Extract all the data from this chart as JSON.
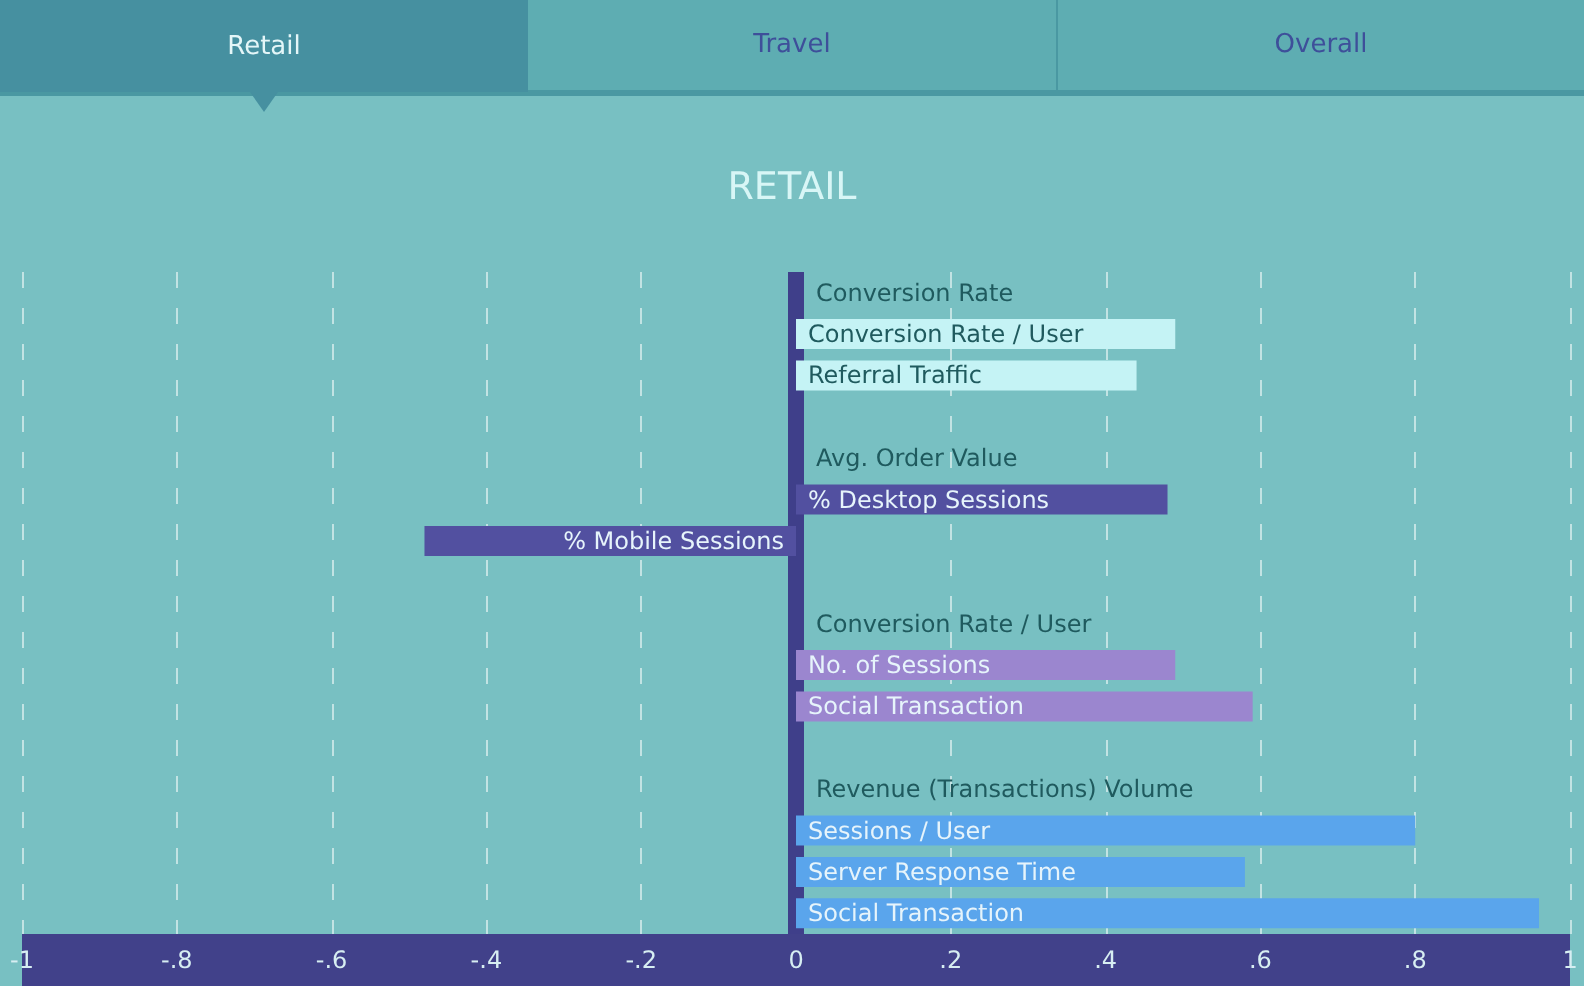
{
  "chart_data": {
    "type": "bar",
    "orientation": "horizontal",
    "title": "RETAIL",
    "annotations": [
      "Retail",
      "Travel",
      "Overall"
    ],
    "categories": [
      "Conversion Rate",
      "Conversion Rate / User",
      "Referral Traffic",
      null,
      "Avg. Order Value",
      "% Desktop Sessions",
      "% Mobile Sessions",
      null,
      "Conversion Rate / User",
      "No. of Sessions",
      "Social Transaction",
      null,
      "Revenue (Transactions) Volume",
      "Sessions / User",
      "Server Response Time",
      "Social Transaction"
    ],
    "values": [
      null,
      0.49,
      0.44,
      null,
      null,
      0.48,
      -0.48,
      null,
      null,
      0.49,
      0.59,
      null,
      null,
      0.8,
      0.58,
      0.96
    ],
    "colors": [
      null,
      "#c5f3f5",
      "#c5f3f5",
      null,
      null,
      "#5250a0",
      "#5250a0",
      null,
      null,
      "#9b86cf",
      "#9b86cf",
      null,
      null,
      "#5aa5ec",
      "#5aa5ec",
      "#5aa5ec"
    ],
    "xlim": [
      -1,
      1
    ],
    "xticks": [
      {
        "value": -1,
        "label": "-1"
      },
      {
        "value": -0.8,
        "label": "-.8"
      },
      {
        "value": -0.6,
        "label": "-.6"
      },
      {
        "value": -0.4,
        "label": "-.4"
      },
      {
        "value": -0.2,
        "label": "-.2"
      },
      0,
      {
        "value": 0.2,
        "label": ".2"
      },
      {
        "value": 0.4,
        "label": ".4"
      },
      {
        "value": 0.6,
        "label": ".6"
      },
      {
        "value": 0.8,
        "label": ".8"
      },
      1
    ],
    "grid": "x"
  }
}
